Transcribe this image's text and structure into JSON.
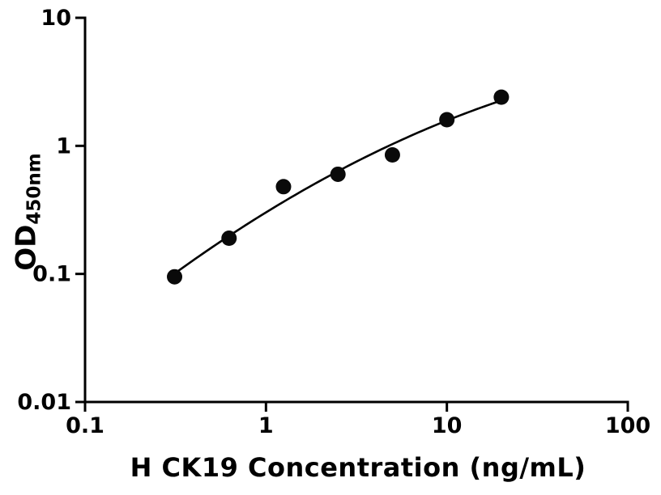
{
  "chart_data": {
    "type": "scatter",
    "title": "",
    "xlabel": "H CK19 Concentration (ng/mL)",
    "ylabel_main": "OD",
    "ylabel_sub": "450nm",
    "x_scale": "log",
    "y_scale": "log",
    "xlim": [
      0.1,
      100
    ],
    "ylim": [
      0.01,
      10
    ],
    "x_ticks": [
      0.1,
      1,
      10,
      100
    ],
    "x_tick_labels": [
      "0.1",
      "1",
      "10",
      "100"
    ],
    "y_ticks": [
      0.01,
      0.1,
      1,
      10
    ],
    "y_tick_labels": [
      "0.01",
      "0.1",
      "1",
      "10"
    ],
    "points": {
      "x": [
        0.3125,
        0.625,
        1.25,
        2.5,
        5,
        10,
        20
      ],
      "y": [
        0.095,
        0.19,
        0.48,
        0.6,
        0.85,
        1.6,
        2.4
      ]
    },
    "curve_fit": "smooth log-log fit through standards",
    "legend": [],
    "grid": "off",
    "marker_color": "#0a0a0a",
    "line_color": "#000000",
    "background": "#ffffff"
  }
}
